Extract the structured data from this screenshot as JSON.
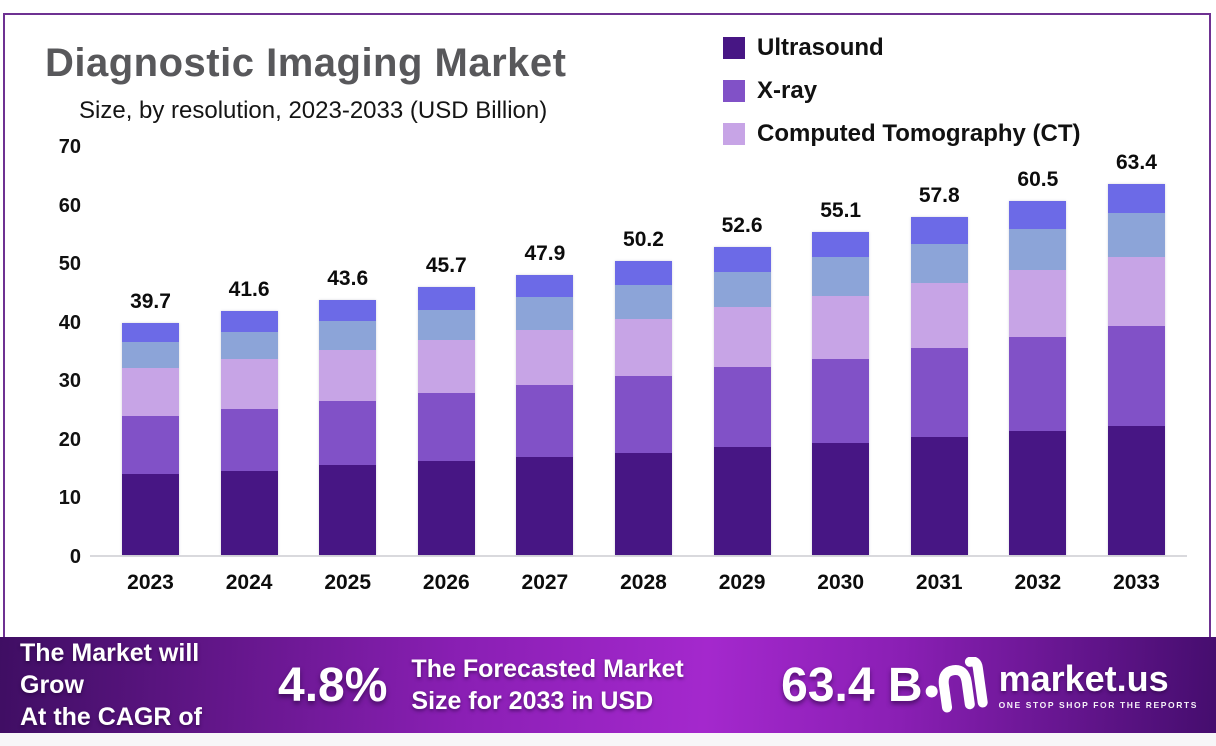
{
  "colors": {
    "frame_border": "#6e3192",
    "title": "#58585b",
    "banner_gradient": [
      "#3f0e63",
      "#8a1fb4",
      "#a428cd",
      "#450d6e"
    ],
    "baseline": "#d9d9dd"
  },
  "header": {
    "title": "Diagnostic Imaging Market",
    "subtitle": "Size, by resolution, 2023-2033 (USD Billion)"
  },
  "legend": [
    {
      "label": "Ultrasound",
      "color": "#471684"
    },
    {
      "label": "X-ray",
      "color": "#8151c7"
    },
    {
      "label": "Computed Tomography (CT)",
      "color": "#c7a4e6"
    }
  ],
  "chart_data": {
    "type": "bar",
    "stacked": true,
    "title": "Diagnostic Imaging Market",
    "subtitle": "Size, by resolution, 2023-2033 (USD Billion)",
    "categories": [
      "2023",
      "2024",
      "2025",
      "2026",
      "2027",
      "2028",
      "2029",
      "2030",
      "2031",
      "2032",
      "2033"
    ],
    "series": [
      {
        "name": "Ultrasound",
        "key": "ultrasound",
        "color": "#471684",
        "values": [
          13.8,
          14.4,
          15.3,
          16.0,
          16.8,
          17.5,
          18.4,
          19.1,
          20.1,
          21.1,
          22.1
        ]
      },
      {
        "name": "X-ray",
        "key": "x-ray",
        "color": "#8151c7",
        "values": [
          9.9,
          10.5,
          11.0,
          11.6,
          12.3,
          13.0,
          13.7,
          14.3,
          15.3,
          16.1,
          17.0
        ]
      },
      {
        "name": "Computed Tomography (CT)",
        "key": "ct",
        "color": "#c7a4e6",
        "values": [
          8.2,
          8.5,
          8.8,
          9.1,
          9.4,
          9.8,
          10.2,
          10.8,
          11.0,
          11.4,
          11.8
        ]
      },
      {
        "name": "unlabeled-4",
        "key": "unlabeled-4",
        "color": "#8ca4d8",
        "values": [
          4.4,
          4.7,
          4.9,
          5.2,
          5.5,
          5.8,
          6.1,
          6.6,
          6.8,
          7.1,
          7.5
        ]
      },
      {
        "name": "unlabeled-5",
        "key": "unlabeled-5",
        "color": "#6c6ae7",
        "values": [
          3.4,
          3.5,
          3.6,
          3.8,
          3.9,
          4.1,
          4.2,
          4.3,
          4.6,
          4.8,
          5.0
        ]
      }
    ],
    "totals": [
      39.7,
      41.6,
      43.6,
      45.7,
      47.9,
      50.2,
      52.6,
      55.1,
      57.8,
      60.5,
      63.4
    ],
    "ylim": [
      0,
      70
    ],
    "yticks": [
      0,
      10,
      20,
      30,
      40,
      50,
      60,
      70
    ],
    "grid": false,
    "legend_position": "top-right",
    "legend_visible_entries": 3
  },
  "banner": {
    "cagr_label_line1": "The Market will Grow",
    "cagr_label_line2": "At the CAGR of",
    "cagr_value": "4.8%",
    "forecast_label_line1": "The Forecasted Market",
    "forecast_label_line2": "Size for 2033 in USD",
    "forecast_value": "63.4 B",
    "logo_text": "market.us",
    "logo_tagline": "ONE STOP SHOP FOR THE REPORTS"
  }
}
